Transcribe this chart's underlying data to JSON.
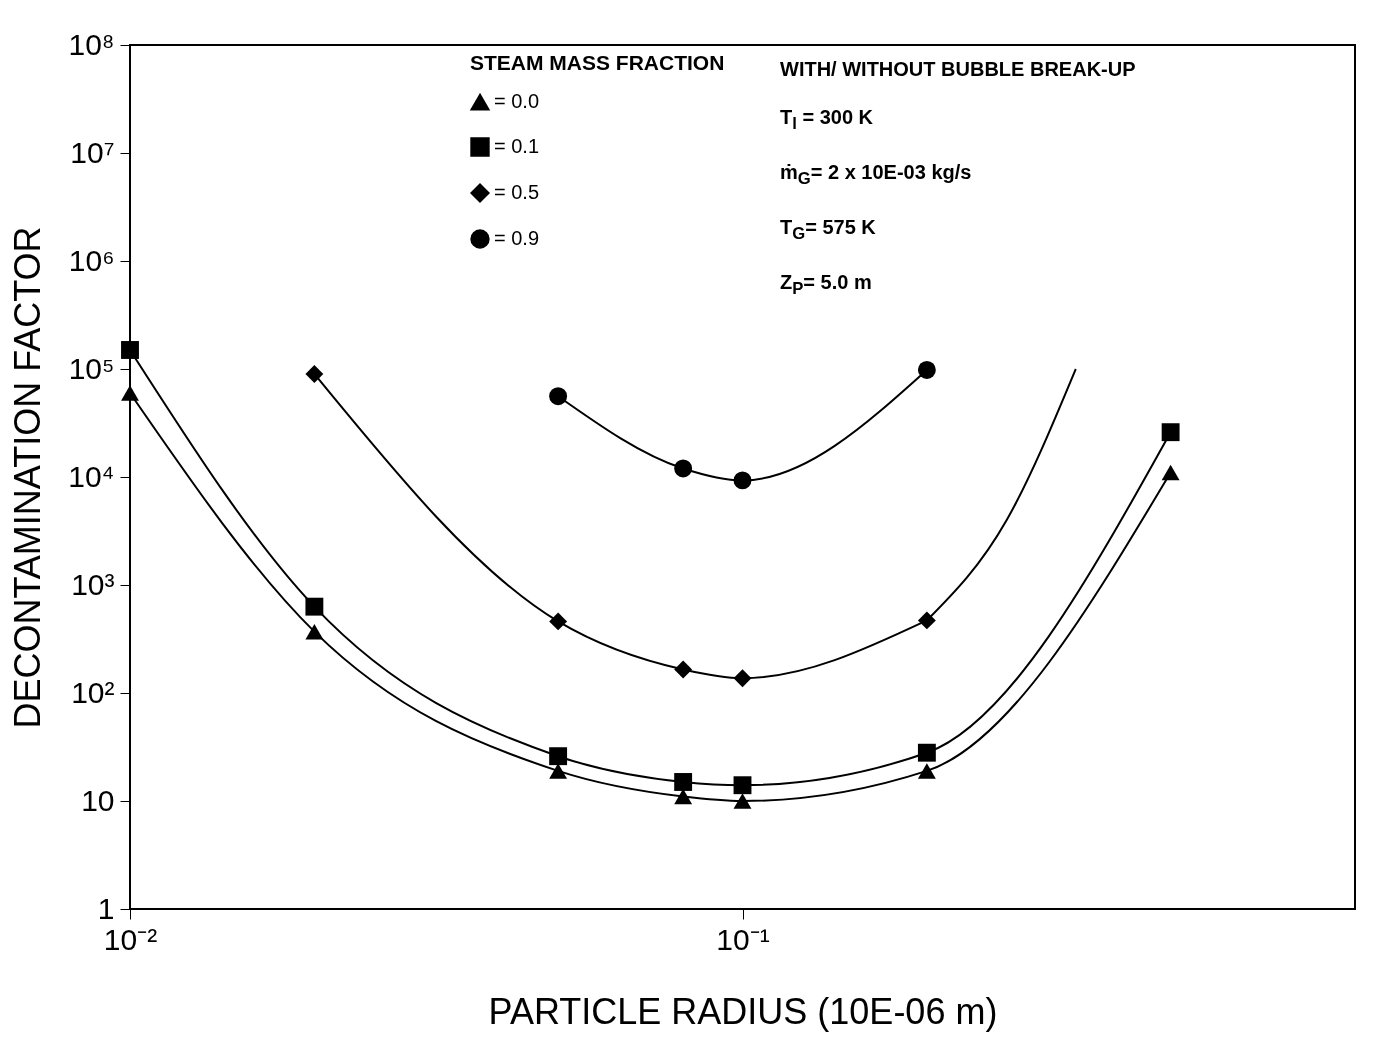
{
  "chart_data": {
    "type": "line",
    "xlabel": "PARTICLE RADIUS (10E-06 m)",
    "ylabel": "DECONTAMINATION FACTOR",
    "legend_title": "STEAM MASS FRACTION",
    "legend": "top",
    "log": "xy",
    "grid": false,
    "xlim": [
      0.01,
      1
    ],
    "xticks": [
      {
        "value": 0.01,
        "label": "10⁻²"
      },
      {
        "value": 0.1,
        "label": "10⁻¹"
      }
    ],
    "ylim": [
      1,
      100000000
    ],
    "yticks": [
      1,
      10,
      {
        "value": 100,
        "label": "10²"
      },
      {
        "value": 1000,
        "label": "10³"
      },
      {
        "value": 10000,
        "label": "10⁴"
      },
      {
        "value": 100000,
        "label": "10⁵"
      },
      {
        "value": 1000000,
        "label": "10⁶"
      },
      {
        "value": 10000000,
        "label": "10⁷"
      },
      {
        "value": 100000000,
        "label": "10⁸"
      }
    ],
    "annotations": [
      "WITH/ WITHOUT BUBBLE BREAK-UP",
      "T$_{l}$ = 300 K",
      "ṁ$_{G}$= 2 x 10E-03 kg/s",
      "T$_{G}$= 575 K",
      "Z$_{P}$= 5.0 m"
    ],
    "series": [
      {
        "name": "= 0.0",
        "color": "#000000",
        "marker": "triangle",
        "x": [
          0.01,
          0.02,
          0.05,
          0.08,
          0.1,
          0.2,
          0.5
        ],
        "values": [
          60000,
          370,
          19,
          11,
          10,
          19,
          11000
        ]
      },
      {
        "name": "= 0.1",
        "color": "#000000",
        "marker": "square",
        "x": [
          0.01,
          0.02,
          0.05,
          0.08,
          0.1,
          0.2,
          0.5
        ],
        "values": [
          150000,
          630,
          26,
          15,
          14,
          28,
          26000
        ]
      },
      {
        "name": "= 0.5",
        "color": "#000000",
        "marker": "diamond",
        "x": [
          0.02,
          0.05,
          0.08,
          0.1,
          0.2
        ],
        "values": [
          90000,
          460,
          165,
          137,
          470
        ]
      },
      {
        "name": "= 0.9",
        "color": "#000000",
        "marker": "circle",
        "x": [
          0.05,
          0.08,
          0.1,
          0.2
        ],
        "values": [
          56000,
          12000,
          9300,
          98000
        ]
      },
      {
        "color": "#000000",
        "marker": "none",
        "x": [
          0.2,
          0.27,
          0.35
        ],
        "values": [
          470,
          4000,
          100000
        ]
      }
    ]
  }
}
